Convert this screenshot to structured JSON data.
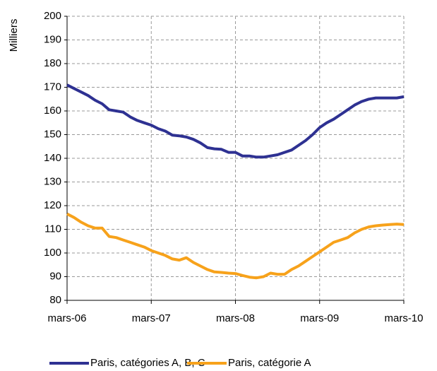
{
  "chart_data": {
    "type": "line",
    "y_label": "Milliers",
    "categories": [
      "mars-06",
      null,
      null,
      null,
      null,
      null,
      null,
      null,
      null,
      null,
      null,
      null,
      "mars-07",
      null,
      null,
      null,
      null,
      null,
      null,
      null,
      null,
      null,
      null,
      null,
      "mars-08",
      null,
      null,
      null,
      null,
      null,
      null,
      null,
      null,
      null,
      null,
      null,
      "mars-09",
      null,
      null,
      null,
      null,
      null,
      null,
      null,
      null,
      null,
      null,
      null,
      "mars-10"
    ],
    "series": [
      {
        "name": "Paris, catégories A, B, C",
        "color": "#2e3192",
        "values": [
          171,
          169.5,
          168,
          166.5,
          164.5,
          163,
          160.5,
          160,
          159.5,
          157.5,
          156,
          155,
          154,
          152.5,
          151.5,
          149.8,
          149.5,
          149,
          148,
          146.5,
          144.5,
          144,
          143.8,
          142.5,
          142.5,
          141,
          141,
          140.5,
          140.5,
          141,
          141.5,
          142.5,
          143.5,
          145.5,
          147.5,
          150,
          153,
          155,
          156.5,
          158.5,
          160.5,
          162.5,
          164,
          165,
          165.5,
          165.5,
          165.5,
          165.5,
          166
        ]
      },
      {
        "name": "Paris, catégorie A",
        "color": "#f7a21b",
        "values": [
          116.5,
          115,
          113,
          111.5,
          110.5,
          110.5,
          107,
          106.5,
          105.5,
          104.5,
          103.5,
          102.5,
          101,
          100,
          99,
          97.5,
          97,
          98,
          96,
          94.5,
          93,
          92,
          91.8,
          91.5,
          91.3,
          90.5,
          89.8,
          89.5,
          90,
          91.5,
          91,
          91,
          93,
          94.5,
          96.5,
          98.5,
          100.5,
          102.5,
          104.5,
          105.5,
          106.5,
          108.5,
          110,
          111,
          111.5,
          111.8,
          112,
          112.2,
          112
        ]
      }
    ],
    "ylim": [
      80,
      200
    ],
    "yticks": [
      80,
      90,
      100,
      110,
      120,
      130,
      140,
      150,
      160,
      170,
      180,
      190,
      200
    ],
    "grid": true,
    "legend": "bottom"
  }
}
